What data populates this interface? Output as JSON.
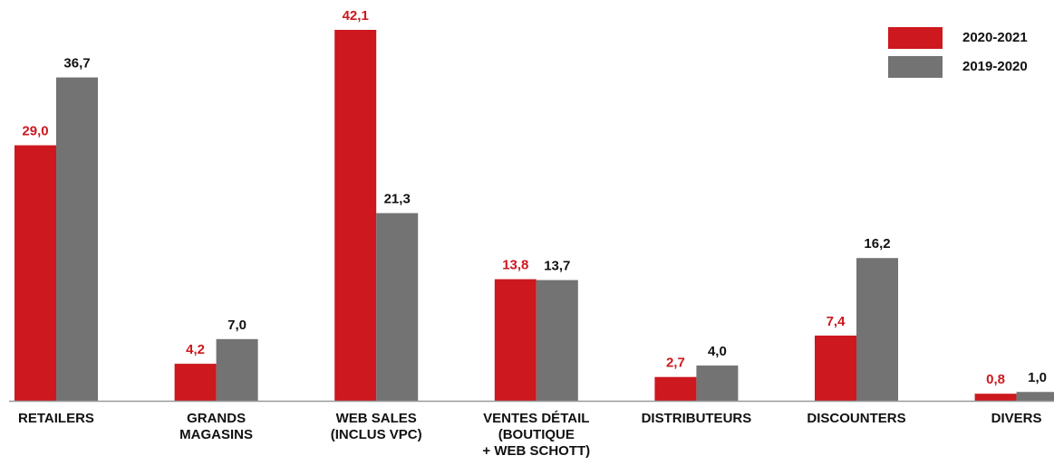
{
  "chart_data": {
    "type": "bar",
    "categories": [
      [
        "RETAILERS"
      ],
      [
        "GRANDS",
        "MAGASINS"
      ],
      [
        "WEB SALES",
        "(INCLUS VPC)"
      ],
      [
        "VENTES DÉTAIL",
        "(BOUTIQUE",
        "+ WEB SCHOTT)"
      ],
      [
        "DISTRIBUTEURS"
      ],
      [
        "DISCOUNTERS"
      ],
      [
        "DIVERS"
      ]
    ],
    "series": [
      {
        "name": "2020-2021",
        "color": "#cc181e",
        "values": [
          29.0,
          4.2,
          42.1,
          13.8,
          2.7,
          7.4,
          0.8
        ],
        "value_labels": [
          "29,0",
          "4,2",
          "42,1",
          "13,8",
          "2,7",
          "7,4",
          "0,8"
        ]
      },
      {
        "name": "2019-2020",
        "color": "#737373",
        "values": [
          36.7,
          7.0,
          21.3,
          13.7,
          4.0,
          16.2,
          1.0
        ],
        "value_labels": [
          "36,7",
          "7,0",
          "21,3",
          "13,7",
          "4,0",
          "16,2",
          "1,0"
        ]
      }
    ],
    "legend": "top-right"
  }
}
